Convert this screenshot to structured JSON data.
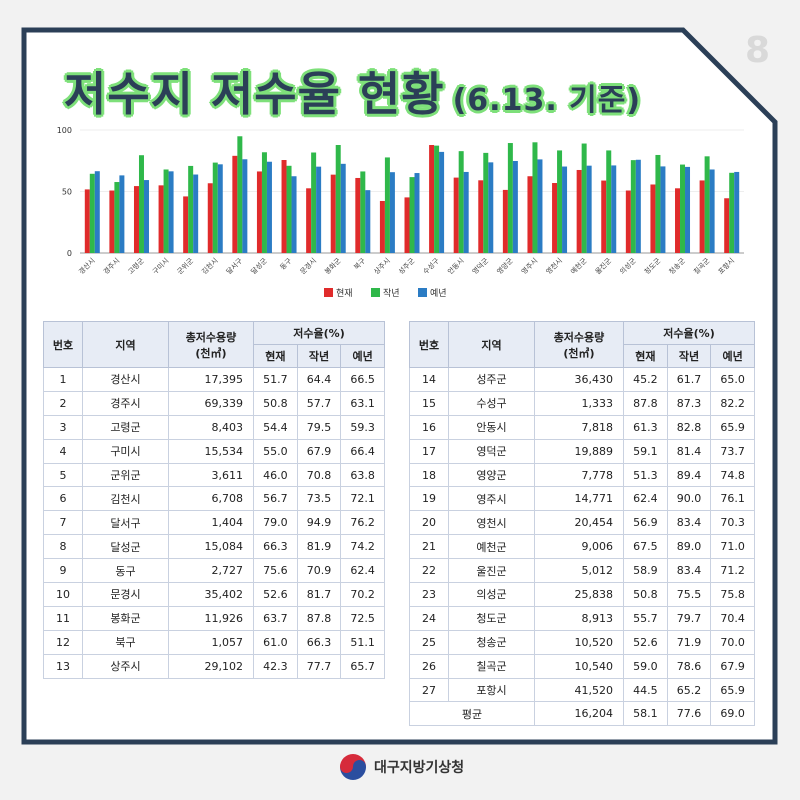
{
  "page_number": "8",
  "title": "저수지 저수율 현황",
  "title_sub": "(6.13. 기준)",
  "footer_label": "대구지방기상청",
  "colors": {
    "current": "#e02b2b",
    "last_year": "#2fb84a",
    "normal": "#2b7cc4",
    "frame": "#2b3f57"
  },
  "chart_data": {
    "type": "bar",
    "ylabel": "저수율(%)",
    "ylim": [
      0,
      100
    ],
    "yticks": [
      0,
      50,
      100
    ],
    "legend_position": "bottom",
    "categories": [
      "경산시",
      "경주시",
      "고령군",
      "구미시",
      "군위군",
      "김천시",
      "달서구",
      "달성군",
      "동구",
      "문경시",
      "봉화군",
      "북구",
      "상주시",
      "성주군",
      "수성구",
      "안동시",
      "영덕군",
      "영양군",
      "영주시",
      "영천시",
      "예천군",
      "울진군",
      "의성군",
      "청도군",
      "청송군",
      "칠곡군",
      "포항시"
    ],
    "series": [
      {
        "name": "현재",
        "color": "#e02b2b",
        "values": [
          51.7,
          50.8,
          54.4,
          55.0,
          46.0,
          56.7,
          79.0,
          66.3,
          75.6,
          52.6,
          63.7,
          61.0,
          42.3,
          45.2,
          87.8,
          61.3,
          59.1,
          51.3,
          62.4,
          56.9,
          67.5,
          58.9,
          50.8,
          55.7,
          52.6,
          59.0,
          44.5
        ]
      },
      {
        "name": "작년",
        "color": "#2fb84a",
        "values": [
          64.4,
          57.7,
          79.5,
          67.9,
          70.8,
          73.5,
          94.9,
          81.9,
          70.9,
          81.7,
          87.8,
          66.3,
          77.7,
          61.7,
          87.3,
          82.8,
          81.4,
          89.4,
          90.0,
          83.4,
          89.0,
          83.4,
          75.5,
          79.7,
          71.9,
          78.6,
          65.2
        ]
      },
      {
        "name": "예년",
        "color": "#2b7cc4",
        "values": [
          66.5,
          63.1,
          59.3,
          66.4,
          63.8,
          72.1,
          76.2,
          74.2,
          62.4,
          70.2,
          72.5,
          51.1,
          65.7,
          65.0,
          82.2,
          65.9,
          73.7,
          74.8,
          76.1,
          70.3,
          71.0,
          71.2,
          75.8,
          70.4,
          70.0,
          67.9,
          65.9
        ]
      }
    ]
  },
  "table": {
    "headers": {
      "no": "번호",
      "region": "지역",
      "capacity_l1": "총저수용량",
      "capacity_l2": "(천㎥)",
      "rate": "저수율(%)",
      "current": "현재",
      "last_year": "작년",
      "normal": "예년"
    },
    "left_rows": [
      [
        "1",
        "경산시",
        "17,395",
        "51.7",
        "64.4",
        "66.5"
      ],
      [
        "2",
        "경주시",
        "69,339",
        "50.8",
        "57.7",
        "63.1"
      ],
      [
        "3",
        "고령군",
        "8,403",
        "54.4",
        "79.5",
        "59.3"
      ],
      [
        "4",
        "구미시",
        "15,534",
        "55.0",
        "67.9",
        "66.4"
      ],
      [
        "5",
        "군위군",
        "3,611",
        "46.0",
        "70.8",
        "63.8"
      ],
      [
        "6",
        "김천시",
        "6,708",
        "56.7",
        "73.5",
        "72.1"
      ],
      [
        "7",
        "달서구",
        "1,404",
        "79.0",
        "94.9",
        "76.2"
      ],
      [
        "8",
        "달성군",
        "15,084",
        "66.3",
        "81.9",
        "74.2"
      ],
      [
        "9",
        "동구",
        "2,727",
        "75.6",
        "70.9",
        "62.4"
      ],
      [
        "10",
        "문경시",
        "35,402",
        "52.6",
        "81.7",
        "70.2"
      ],
      [
        "11",
        "봉화군",
        "11,926",
        "63.7",
        "87.8",
        "72.5"
      ],
      [
        "12",
        "북구",
        "1,057",
        "61.0",
        "66.3",
        "51.1"
      ],
      [
        "13",
        "상주시",
        "29,102",
        "42.3",
        "77.7",
        "65.7"
      ]
    ],
    "right_rows": [
      [
        "14",
        "성주군",
        "36,430",
        "45.2",
        "61.7",
        "65.0"
      ],
      [
        "15",
        "수성구",
        "1,333",
        "87.8",
        "87.3",
        "82.2"
      ],
      [
        "16",
        "안동시",
        "7,818",
        "61.3",
        "82.8",
        "65.9"
      ],
      [
        "17",
        "영덕군",
        "19,889",
        "59.1",
        "81.4",
        "73.7"
      ],
      [
        "18",
        "영양군",
        "7,778",
        "51.3",
        "89.4",
        "74.8"
      ],
      [
        "19",
        "영주시",
        "14,771",
        "62.4",
        "90.0",
        "76.1"
      ],
      [
        "20",
        "영천시",
        "20,454",
        "56.9",
        "83.4",
        "70.3"
      ],
      [
        "21",
        "예천군",
        "9,006",
        "67.5",
        "89.0",
        "71.0"
      ],
      [
        "22",
        "울진군",
        "5,012",
        "58.9",
        "83.4",
        "71.2"
      ],
      [
        "23",
        "의성군",
        "25,838",
        "50.8",
        "75.5",
        "75.8"
      ],
      [
        "24",
        "청도군",
        "8,913",
        "55.7",
        "79.7",
        "70.4"
      ],
      [
        "25",
        "청송군",
        "10,520",
        "52.6",
        "71.9",
        "70.0"
      ],
      [
        "26",
        "칠곡군",
        "10,540",
        "59.0",
        "78.6",
        "67.9"
      ],
      [
        "27",
        "포항시",
        "41,520",
        "44.5",
        "65.2",
        "65.9"
      ]
    ],
    "average": {
      "label": "평균",
      "capacity": "16,204",
      "current": "58.1",
      "last_year": "77.6",
      "normal": "69.0"
    }
  }
}
